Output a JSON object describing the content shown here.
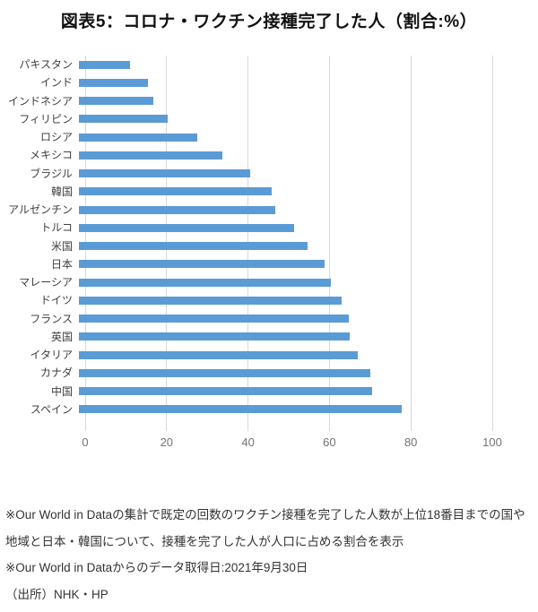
{
  "title": "図表5：コロナ・ワクチン接種完了した人（割合:%）",
  "chart_data": {
    "type": "bar",
    "orientation": "horizontal",
    "title": "図表5：コロナ・ワクチン接種完了した人（割合:%）",
    "categories": [
      "パキスタン",
      "インド",
      "インドネシア",
      "フィリピン",
      "ロシア",
      "メキシコ",
      "ブラジル",
      "韓国",
      "アルゼンチン",
      "トルコ",
      "米国",
      "日本",
      "マレーシア",
      "ドイツ",
      "フランス",
      "英国",
      "イタリア",
      "カナダ",
      "中国",
      "スペイン"
    ],
    "values": [
      12.4,
      16.8,
      18.1,
      21.5,
      28.7,
      34.7,
      41.4,
      46.6,
      47.4,
      52.0,
      55.4,
      59.4,
      61.0,
      63.6,
      65.4,
      65.6,
      67.4,
      70.6,
      70.9,
      78.1
    ],
    "unit": "%",
    "xlabel": "",
    "ylabel": "",
    "xlim": [
      0,
      100
    ],
    "x_ticks": [
      0,
      20,
      40,
      60,
      80,
      100
    ],
    "grid": true,
    "legend": false,
    "bar_color": "#5b9bd5",
    "grid_color": "#d9d9d9"
  },
  "notes": [
    "※Our World in Dataの集計で既定の回数のワクチン接種を完了した人数が上位18番目までの国や",
    "地域と日本・韓国について、接種を完了した人が人口に占める割合を表示",
    "※Our World in Dataからのデータ取得日:2021年9月30日",
    "（出所）NHK・HP"
  ]
}
